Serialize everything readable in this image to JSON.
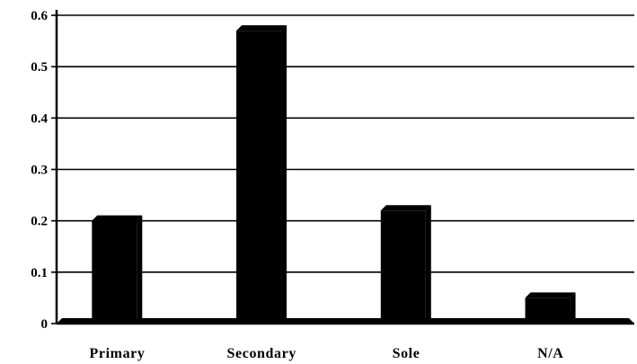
{
  "chart_data": {
    "type": "bar",
    "title": "",
    "xlabel": "",
    "ylabel": "",
    "categories": [
      "Primary",
      "Secondary",
      "Sole",
      "N/A"
    ],
    "values": [
      0.2,
      0.57,
      0.22,
      0.05
    ],
    "ylim": [
      0,
      0.6
    ],
    "yticks": [
      "0",
      "0.1",
      "0.2",
      "0.3",
      "0.4",
      "0.5",
      "0.6"
    ],
    "grid": true,
    "legend": "none",
    "bar_color": "#000000",
    "style": "3d-shadowed"
  }
}
